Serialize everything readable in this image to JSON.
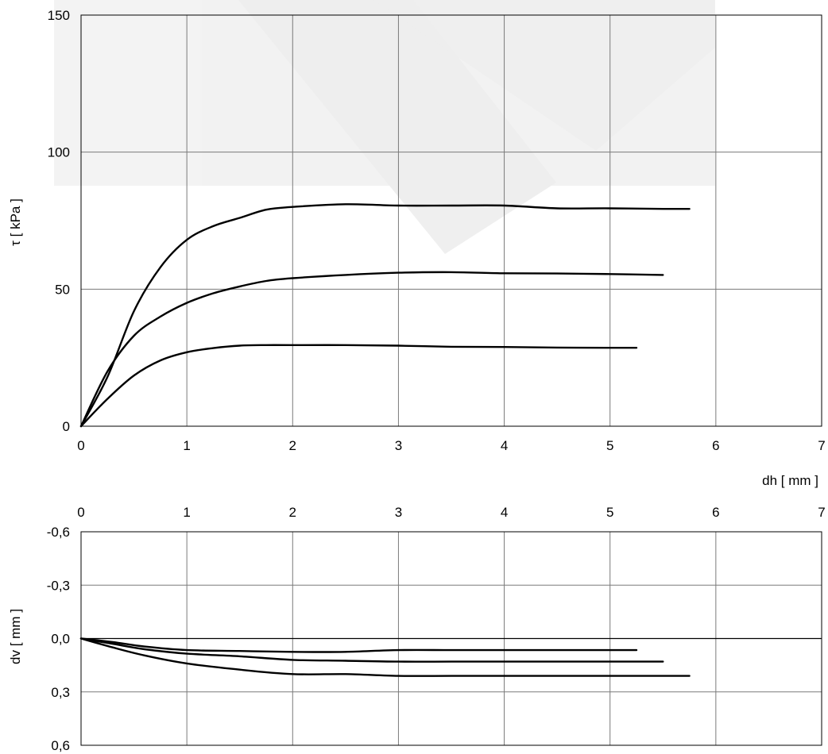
{
  "chart_data": [
    {
      "type": "line",
      "title": "",
      "xlabel": "dh [ mm ]",
      "ylabel": "τ [ kPa ]",
      "xlim": [
        0,
        7
      ],
      "ylim": [
        0,
        150
      ],
      "x_ticks": [
        "0",
        "1",
        "2",
        "3",
        "4",
        "5",
        "6",
        "7"
      ],
      "y_ticks": [
        "0",
        "50",
        "100",
        "150"
      ],
      "grid": true,
      "series": [
        {
          "points": [
            [
              0,
              0
            ],
            [
              0.25,
              18
            ],
            [
              0.5,
              42
            ],
            [
              0.75,
              58
            ],
            [
              1,
              68
            ],
            [
              1.25,
              73
            ],
            [
              1.5,
              76
            ],
            [
              1.75,
              79
            ],
            [
              2,
              80
            ],
            [
              2.5,
              81
            ],
            [
              3,
              80.5
            ],
            [
              3.5,
              80.5
            ],
            [
              4,
              80.5
            ],
            [
              4.5,
              79.5
            ],
            [
              5,
              79.5
            ],
            [
              5.5,
              79.3
            ],
            [
              5.75,
              79.3
            ]
          ]
        },
        {
          "points": [
            [
              0,
              0
            ],
            [
              0.25,
              20
            ],
            [
              0.5,
              33
            ],
            [
              0.75,
              40
            ],
            [
              1,
              45
            ],
            [
              1.25,
              48.5
            ],
            [
              1.5,
              51
            ],
            [
              1.75,
              53
            ],
            [
              2,
              54
            ],
            [
              2.5,
              55.2
            ],
            [
              3,
              56
            ],
            [
              3.5,
              56.2
            ],
            [
              4,
              55.8
            ],
            [
              4.5,
              55.7
            ],
            [
              5,
              55.5
            ],
            [
              5.5,
              55.2
            ]
          ]
        },
        {
          "points": [
            [
              0,
              0
            ],
            [
              0.25,
              10
            ],
            [
              0.5,
              18.5
            ],
            [
              0.75,
              24
            ],
            [
              1,
              27
            ],
            [
              1.25,
              28.5
            ],
            [
              1.5,
              29.4
            ],
            [
              1.75,
              29.6
            ],
            [
              2,
              29.6
            ],
            [
              2.5,
              29.6
            ],
            [
              3,
              29.4
            ],
            [
              3.5,
              29
            ],
            [
              4,
              28.9
            ],
            [
              4.5,
              28.7
            ],
            [
              5,
              28.6
            ],
            [
              5.25,
              28.6
            ]
          ]
        }
      ]
    },
    {
      "type": "line",
      "title": "",
      "xlabel": "",
      "ylabel": "dv [ mm ]",
      "xlim": [
        0,
        7
      ],
      "ylim": [
        -0.6,
        0.6
      ],
      "y_inverted": true,
      "x_axis_position": "top",
      "x_ticks": [
        "0",
        "1",
        "2",
        "3",
        "4",
        "5",
        "6",
        "7"
      ],
      "y_ticks": [
        "-0,6",
        "-0,3",
        "0,0",
        "0,3",
        "0,6"
      ],
      "grid": true,
      "series": [
        {
          "points": [
            [
              0,
              0
            ],
            [
              0.3,
              0.02
            ],
            [
              0.6,
              0.045
            ],
            [
              1,
              0.065
            ],
            [
              1.5,
              0.07
            ],
            [
              2,
              0.075
            ],
            [
              2.5,
              0.075
            ],
            [
              3,
              0.065
            ],
            [
              3.5,
              0.065
            ],
            [
              4,
              0.065
            ],
            [
              4.5,
              0.065
            ],
            [
              5,
              0.065
            ],
            [
              5.25,
              0.065
            ]
          ]
        },
        {
          "points": [
            [
              0,
              0
            ],
            [
              0.3,
              0.03
            ],
            [
              0.6,
              0.06
            ],
            [
              1,
              0.085
            ],
            [
              1.5,
              0.1
            ],
            [
              2,
              0.12
            ],
            [
              2.5,
              0.125
            ],
            [
              3,
              0.13
            ],
            [
              3.5,
              0.13
            ],
            [
              4,
              0.13
            ],
            [
              4.5,
              0.13
            ],
            [
              5,
              0.13
            ],
            [
              5.5,
              0.13
            ]
          ]
        },
        {
          "points": [
            [
              0,
              0
            ],
            [
              0.3,
              0.05
            ],
            [
              0.6,
              0.095
            ],
            [
              1,
              0.14
            ],
            [
              1.5,
              0.175
            ],
            [
              2,
              0.2
            ],
            [
              2.5,
              0.2
            ],
            [
              3,
              0.21
            ],
            [
              3.5,
              0.21
            ],
            [
              4,
              0.21
            ],
            [
              4.5,
              0.21
            ],
            [
              5,
              0.21
            ],
            [
              5.5,
              0.21
            ],
            [
              5.75,
              0.21
            ]
          ]
        }
      ]
    }
  ]
}
